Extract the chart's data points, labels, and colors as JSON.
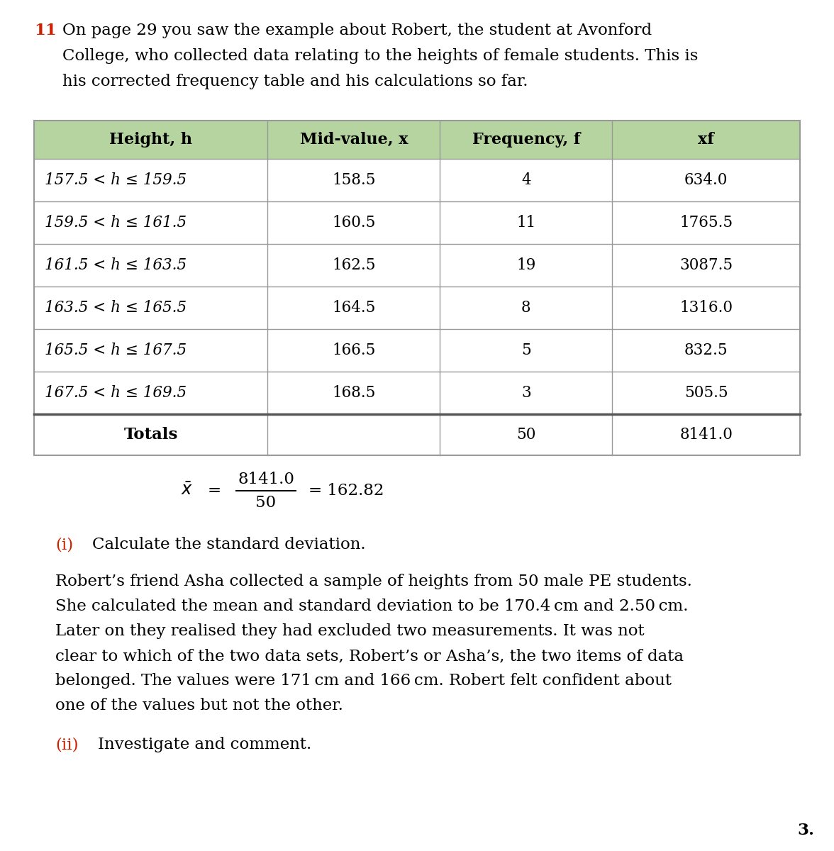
{
  "question_number": "11",
  "intro_text_lines": [
    "On page 29 you saw the example about Robert, the student at Avonford",
    "College, who collected data relating to the heights of female students. This is",
    "his corrected frequency table and his calculations so far."
  ],
  "table_header": [
    "Height, h",
    "Mid-value, x",
    "Frequency, f",
    "xf"
  ],
  "table_rows": [
    [
      "157.5 < h ≤ 159.5",
      "158.5",
      "4",
      "634.0"
    ],
    [
      "159.5 < h ≤ 161.5",
      "160.5",
      "11",
      "1765.5"
    ],
    [
      "161.5 < h ≤ 163.5",
      "162.5",
      "19",
      "3087.5"
    ],
    [
      "163.5 < h ≤ 165.5",
      "164.5",
      "8",
      "1316.0"
    ],
    [
      "165.5 < h ≤ 167.5",
      "166.5",
      "5",
      "832.5"
    ],
    [
      "167.5 < h ≤ 169.5",
      "168.5",
      "3",
      "505.5"
    ]
  ],
  "totals_row": [
    "Totals",
    "",
    "50",
    "8141.0"
  ],
  "header_bg_color": "#b5d4a0",
  "table_border_color": "#999999",
  "totals_border_color": "#555555",
  "bg_color": "#ffffff",
  "part_i_label": "(i)",
  "part_i_text": "Calculate the standard deviation.",
  "part_color": "#cc2200",
  "body_text_lines": [
    "Robert’s friend Asha collected a sample of heights from 50 male PE students.",
    "She calculated the mean and standard deviation to be 170.4 cm and 2.50 cm.",
    "Later on they realised they had excluded two measurements. It was not",
    "clear to which of the two data sets, Robert’s or Asha’s, the two items of data",
    "belonged. The values were 171 cm and 166 cm. Robert felt confident about",
    "one of the values but not the other."
  ],
  "part_ii_label": "(ii)",
  "part_ii_text": "Investigate and comment.",
  "question_num": "3."
}
